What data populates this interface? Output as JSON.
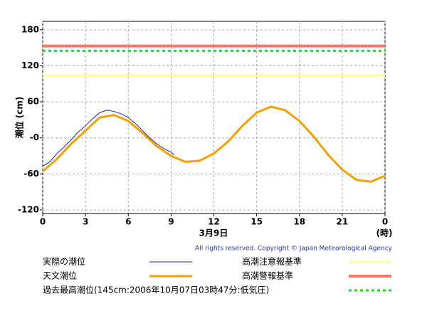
{
  "chart_data": {
    "type": "line",
    "ylabel": "潮位 (cm)",
    "xlabel": "3月9日",
    "xunit": "(時)",
    "copyright": "All rights reserved. Copyright © Japan Meteorological Agency",
    "xlim": [
      0,
      24
    ],
    "xticks": [
      0,
      3,
      6,
      9,
      12,
      15,
      18,
      21,
      {
        "value": 24,
        "label": "0"
      }
    ],
    "ylim": [
      -126,
      194
    ],
    "yticks": [
      {
        "value": -120,
        "label": "-120"
      },
      -60,
      {
        "value": 0,
        "label": "-0"
      },
      60,
      120,
      180
    ],
    "grid": true,
    "series": [
      {
        "name": "実際の潮位",
        "color": "#2222aa",
        "width": 1,
        "x": [
          0,
          0.5,
          1,
          1.5,
          2,
          2.5,
          3,
          3.5,
          4,
          4.5,
          5,
          5.5,
          6,
          6.5,
          7,
          7.5,
          8,
          8.5,
          9,
          9.2
        ],
        "values": [
          -47,
          -40,
          -26,
          -15,
          -3,
          10,
          20,
          32,
          42,
          46,
          44,
          40,
          34,
          24,
          12,
          0,
          -10,
          -18,
          -24,
          -28
        ]
      },
      {
        "name": "天文潮位",
        "color": "#f5a000",
        "width": 3,
        "x": [
          0,
          1,
          2,
          3,
          4,
          5,
          6,
          7,
          8,
          9,
          10,
          11,
          12,
          13,
          14,
          15,
          16,
          17,
          18,
          19,
          20,
          21,
          22,
          23,
          24
        ],
        "values": [
          -56,
          -35,
          -10,
          12,
          34,
          38,
          28,
          8,
          -14,
          -30,
          -40,
          -38,
          -26,
          -6,
          20,
          42,
          52,
          46,
          28,
          2,
          -28,
          -53,
          -70,
          -73,
          -63
        ]
      },
      {
        "name": "高潮注意報基準",
        "color": "#ffff99",
        "width": 3,
        "x": [
          0,
          24
        ],
        "values": [
          104,
          104
        ]
      },
      {
        "name": "高潮警報基準",
        "color": "#ff7766",
        "width": 4,
        "x": [
          0,
          24
        ],
        "values": [
          153,
          153
        ]
      },
      {
        "name": "過去最高潮位(145cm:2006年10月07日03時47分:低気圧)",
        "color": "#22dd22",
        "width": 3,
        "dashed": true,
        "x": [
          0,
          24
        ],
        "values": [
          145,
          145
        ]
      }
    ]
  }
}
